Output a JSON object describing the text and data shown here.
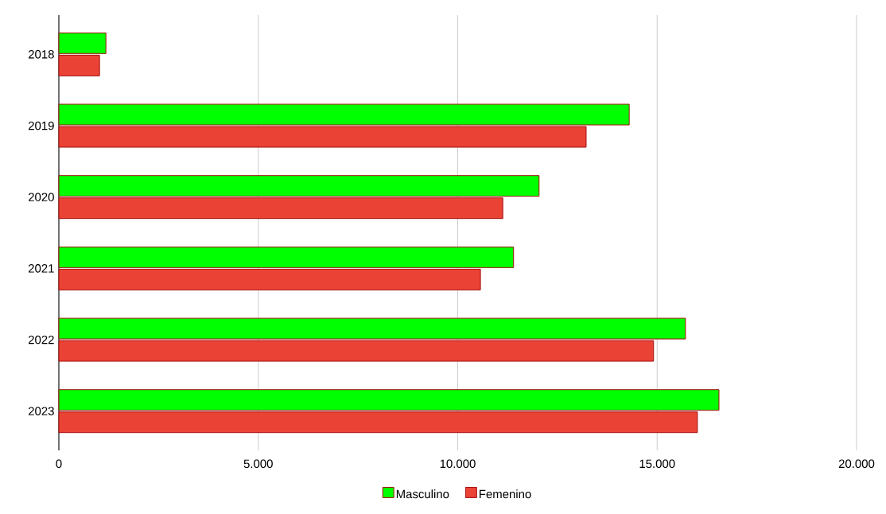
{
  "chart_data": {
    "type": "bar",
    "orientation": "horizontal",
    "categories": [
      "2018",
      "2019",
      "2020",
      "2021",
      "2022",
      "2023"
    ],
    "series": [
      {
        "name": "Masculino",
        "color": "#00ff00",
        "values": [
          1180,
          14300,
          12040,
          11400,
          15710,
          16550
        ]
      },
      {
        "name": "Femenino",
        "color": "#ea4335",
        "values": [
          1020,
          13220,
          11130,
          10570,
          14910,
          16010
        ]
      }
    ],
    "xlim": [
      0,
      20000
    ],
    "xticks": [
      0,
      {
        "value": 5000,
        "label": "5.000"
      },
      {
        "value": 10000,
        "label": "10.000"
      },
      {
        "value": 15000,
        "label": "15.000"
      },
      {
        "value": 20000,
        "label": "20.000"
      }
    ],
    "grid": "x",
    "legend": "bottom"
  }
}
